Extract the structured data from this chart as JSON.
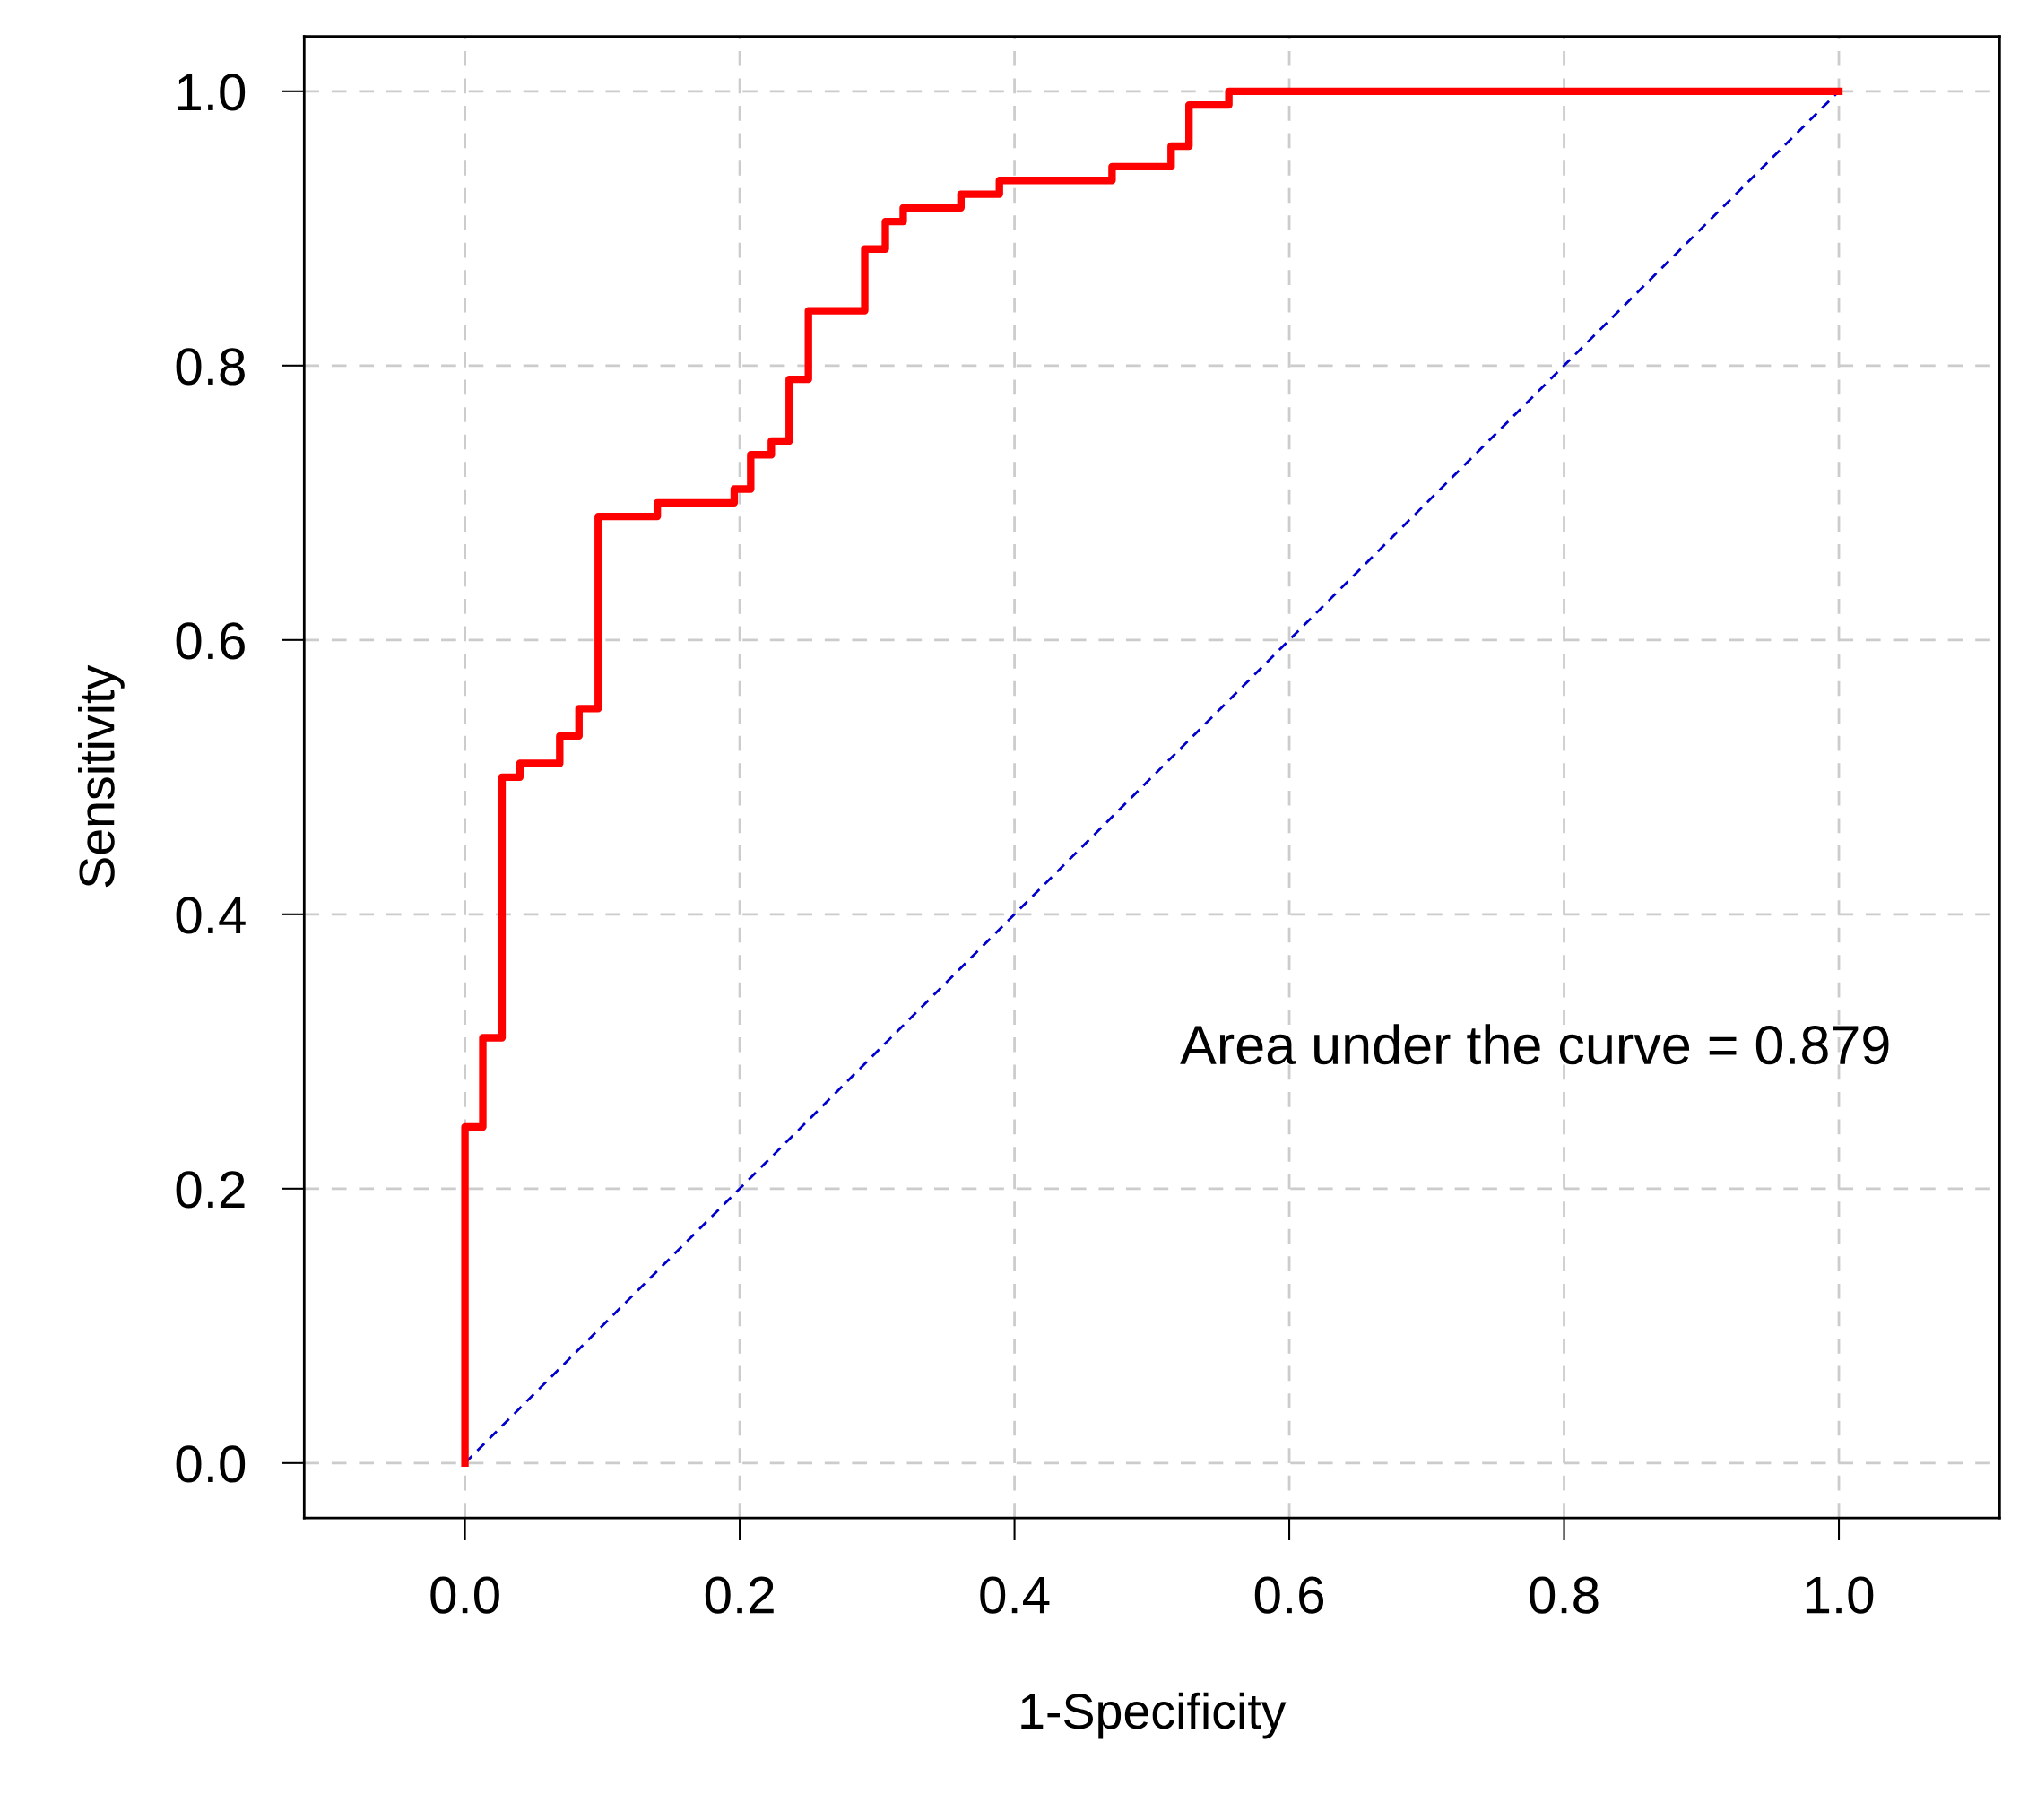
{
  "chart_data": {
    "type": "step",
    "xlabel": "1-Specificity",
    "ylabel": "Sensitivity",
    "x": [
      0,
      0,
      0.013,
      0.027,
      0.04,
      0.069,
      0.083,
      0.097,
      0.14,
      0.196,
      0.208,
      0.223,
      0.236,
      0.25,
      0.291,
      0.306,
      0.319,
      0.361,
      0.389,
      0.471,
      0.514,
      0.527,
      0.556,
      1.0
    ],
    "series": [
      {
        "color": "#ff0000",
        "values": [
          0,
          0.245,
          0.31,
          0.5,
          0.51,
          0.53,
          0.55,
          0.69,
          0.7,
          0.71,
          0.735,
          0.745,
          0.79,
          0.84,
          0.885,
          0.905,
          0.915,
          0.925,
          0.935,
          0.945,
          0.96,
          0.99,
          1.0,
          1.0
        ]
      },
      {
        "type": "line",
        "color": "#0000cc",
        "line_style": "dashed",
        "x": [
          0,
          1
        ],
        "values": [
          0,
          1
        ]
      }
    ],
    "xlim": [
      -0.117,
      1.117
    ],
    "ylim": [
      -0.04,
      1.04
    ],
    "xticks": [
      {
        "value": 0,
        "label": "0.0"
      },
      0.2,
      0.4,
      0.6,
      0.8,
      {
        "value": 1,
        "label": "1.0"
      }
    ],
    "yticks": [
      {
        "value": 0,
        "label": "0.0"
      },
      0.2,
      0.4,
      0.6,
      0.8,
      {
        "value": 1,
        "label": "1.0"
      }
    ],
    "grid": true,
    "annotations": [
      "Area under the curve = 0.879"
    ]
  }
}
